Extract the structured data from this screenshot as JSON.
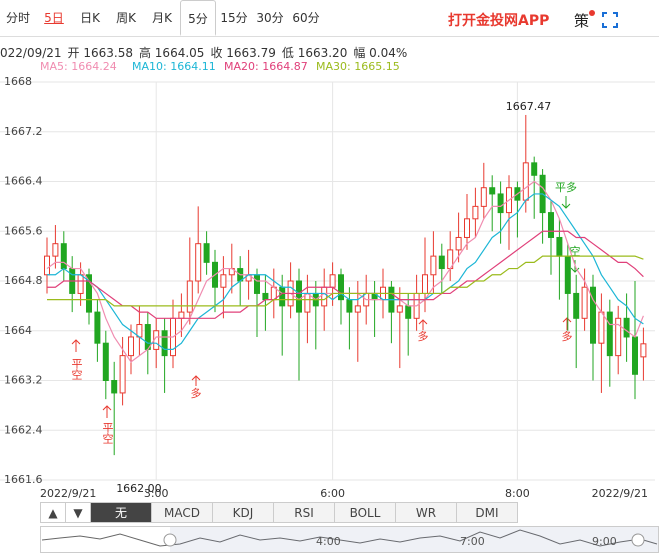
{
  "tabs": [
    "分时",
    "5日",
    "日K",
    "周K",
    "月K",
    "5分",
    "15分",
    "30分",
    "60分"
  ],
  "brand": "打开金投网APP",
  "strategy": "策",
  "info": [
    "022/09/21",
    "开 1663.58",
    "高 1664.05",
    "收 1663.79",
    "低 1663.20",
    "幅 0.04%"
  ],
  "chart_data": {
    "type": "candlestick",
    "ylim": [
      1661.6,
      1668
    ],
    "yticks": [
      1668,
      1667.2,
      1666.4,
      1665.6,
      1664.8,
      1664,
      1663.2,
      1662.4,
      1661.6
    ],
    "grid": true,
    "up_color": "#e8392f",
    "down_color": "#21a621",
    "categories": [
      "2022/9/21",
      null,
      null,
      null,
      null,
      null,
      null,
      null,
      null,
      null,
      null,
      null,
      null,
      "3:00",
      null,
      null,
      null,
      null,
      null,
      null,
      null,
      null,
      null,
      null,
      null,
      null,
      null,
      null,
      null,
      null,
      null,
      null,
      null,
      null,
      "6:00",
      null,
      null,
      null,
      null,
      null,
      null,
      null,
      null,
      null,
      null,
      null,
      null,
      null,
      null,
      null,
      null,
      null,
      null,
      null,
      null,
      null,
      "8:00",
      null,
      null,
      null,
      null,
      null,
      null,
      null,
      null,
      null,
      null,
      null,
      null,
      null,
      null,
      "2022/9/21"
    ],
    "ohlc": [
      [
        1664.9,
        1665.5,
        1664.6,
        1665.2
      ],
      [
        1665.2,
        1665.7,
        1665.0,
        1665.4
      ],
      [
        1665.4,
        1665.6,
        1664.8,
        1665.0
      ],
      [
        1665.0,
        1665.2,
        1664.3,
        1664.6
      ],
      [
        1664.6,
        1665.1,
        1664.4,
        1664.9
      ],
      [
        1664.9,
        1665.0,
        1664.1,
        1664.3
      ],
      [
        1664.3,
        1664.5,
        1663.5,
        1663.8
      ],
      [
        1663.8,
        1664.0,
        1662.9,
        1663.2
      ],
      [
        1663.2,
        1663.5,
        1662.0,
        1663.0
      ],
      [
        1663.0,
        1663.9,
        1662.8,
        1663.6
      ],
      [
        1663.6,
        1664.1,
        1663.3,
        1663.9
      ],
      [
        1663.9,
        1664.4,
        1663.6,
        1664.1
      ],
      [
        1664.1,
        1664.3,
        1663.3,
        1663.7
      ],
      [
        1663.7,
        1664.2,
        1663.4,
        1664.0
      ],
      [
        1664.0,
        1664.2,
        1663.0,
        1663.6
      ],
      [
        1663.6,
        1664.5,
        1663.4,
        1664.2
      ],
      [
        1664.2,
        1664.6,
        1663.9,
        1664.3
      ],
      [
        1664.3,
        1665.5,
        1664.1,
        1664.8
      ],
      [
        1664.8,
        1666.0,
        1664.6,
        1665.4
      ],
      [
        1665.4,
        1665.6,
        1664.9,
        1665.1
      ],
      [
        1665.1,
        1665.3,
        1664.3,
        1664.7
      ],
      [
        1664.7,
        1665.2,
        1664.2,
        1664.9
      ],
      [
        1664.9,
        1665.4,
        1664.6,
        1665.0
      ],
      [
        1665.0,
        1665.2,
        1664.4,
        1664.8
      ],
      [
        1664.8,
        1665.3,
        1664.5,
        1664.9
      ],
      [
        1664.9,
        1665.0,
        1663.9,
        1664.6
      ],
      [
        1664.6,
        1664.9,
        1664.0,
        1664.5
      ],
      [
        1664.5,
        1665.0,
        1664.2,
        1664.7
      ],
      [
        1664.7,
        1664.9,
        1663.6,
        1664.4
      ],
      [
        1664.4,
        1665.1,
        1664.2,
        1664.8
      ],
      [
        1664.8,
        1665.0,
        1663.2,
        1664.3
      ],
      [
        1664.3,
        1664.9,
        1663.8,
        1664.6
      ],
      [
        1664.6,
        1664.8,
        1663.7,
        1664.4
      ],
      [
        1664.4,
        1665.0,
        1664.0,
        1664.7
      ],
      [
        1664.7,
        1665.1,
        1664.4,
        1664.9
      ],
      [
        1664.9,
        1665.0,
        1664.1,
        1664.5
      ],
      [
        1664.5,
        1664.7,
        1663.7,
        1664.3
      ],
      [
        1664.3,
        1664.8,
        1663.5,
        1664.4
      ],
      [
        1664.4,
        1664.9,
        1664.1,
        1664.6
      ],
      [
        1664.6,
        1664.8,
        1663.9,
        1664.5
      ],
      [
        1664.5,
        1665.0,
        1664.2,
        1664.7
      ],
      [
        1664.7,
        1664.8,
        1663.8,
        1664.3
      ],
      [
        1664.3,
        1664.7,
        1663.4,
        1664.4
      ],
      [
        1664.4,
        1664.6,
        1663.6,
        1664.2
      ],
      [
        1664.2,
        1664.9,
        1664.0,
        1664.6
      ],
      [
        1664.6,
        1665.5,
        1664.3,
        1664.9
      ],
      [
        1664.9,
        1665.6,
        1664.6,
        1665.2
      ],
      [
        1665.2,
        1665.4,
        1664.6,
        1665.0
      ],
      [
        1665.0,
        1665.6,
        1664.8,
        1665.3
      ],
      [
        1665.3,
        1665.9,
        1665.1,
        1665.5
      ],
      [
        1665.5,
        1666.2,
        1665.3,
        1665.8
      ],
      [
        1665.8,
        1666.3,
        1665.5,
        1666.0
      ],
      [
        1666.0,
        1666.7,
        1665.8,
        1666.3
      ],
      [
        1666.3,
        1666.5,
        1665.6,
        1666.2
      ],
      [
        1666.2,
        1666.4,
        1665.4,
        1665.9
      ],
      [
        1665.9,
        1666.5,
        1665.3,
        1666.3
      ],
      [
        1666.3,
        1666.4,
        1665.5,
        1666.1
      ],
      [
        1666.1,
        1667.47,
        1665.9,
        1666.7
      ],
      [
        1666.7,
        1666.8,
        1665.8,
        1666.5
      ],
      [
        1666.5,
        1666.6,
        1665.4,
        1665.9
      ],
      [
        1665.9,
        1666.1,
        1664.9,
        1665.5
      ],
      [
        1665.5,
        1665.8,
        1664.5,
        1665.2
      ],
      [
        1665.2,
        1665.4,
        1664.0,
        1664.6
      ],
      [
        1664.6,
        1664.9,
        1663.4,
        1664.2
      ],
      [
        1664.2,
        1665.0,
        1664.0,
        1664.7
      ],
      [
        1664.7,
        1664.9,
        1663.2,
        1663.8
      ],
      [
        1663.8,
        1664.6,
        1663.0,
        1664.3
      ],
      [
        1664.3,
        1664.5,
        1663.1,
        1663.6
      ],
      [
        1663.6,
        1664.4,
        1663.3,
        1664.2
      ],
      [
        1664.2,
        1664.6,
        1663.5,
        1663.9
      ],
      [
        1663.9,
        1664.8,
        1662.9,
        1663.3
      ],
      [
        1663.58,
        1664.05,
        1663.2,
        1663.79
      ]
    ],
    "series": [
      {
        "name": "MA5: 1664.24",
        "color": "#f08cb0",
        "values": [
          1665.0,
          1665.1,
          1665.1,
          1665.0,
          1665.0,
          1664.8,
          1664.6,
          1664.2,
          1663.9,
          1663.7,
          1663.5,
          1663.6,
          1663.7,
          1663.9,
          1663.9,
          1663.9,
          1664.0,
          1664.2,
          1664.5,
          1664.8,
          1664.9,
          1665.0,
          1665.0,
          1664.9,
          1664.9,
          1664.8,
          1664.8,
          1664.7,
          1664.6,
          1664.6,
          1664.5,
          1664.6,
          1664.5,
          1664.6,
          1664.6,
          1664.6,
          1664.6,
          1664.6,
          1664.5,
          1664.5,
          1664.5,
          1664.5,
          1664.5,
          1664.4,
          1664.4,
          1664.5,
          1664.7,
          1664.8,
          1665.0,
          1665.2,
          1665.4,
          1665.5,
          1665.8,
          1666.0,
          1666.0,
          1666.1,
          1666.2,
          1666.3,
          1666.4,
          1666.3,
          1666.1,
          1665.8,
          1665.4,
          1665.0,
          1664.8,
          1664.5,
          1664.3,
          1664.1,
          1664.1,
          1664.0,
          1663.9,
          1664.24
        ]
      },
      {
        "name": "MA10: 1664.11",
        "color": "#1cb6d6",
        "values": [
          1664.9,
          1664.9,
          1665.0,
          1664.9,
          1664.9,
          1664.8,
          1664.7,
          1664.5,
          1664.3,
          1664.1,
          1664.0,
          1663.9,
          1663.8,
          1663.8,
          1663.7,
          1663.7,
          1663.8,
          1664.0,
          1664.2,
          1664.3,
          1664.4,
          1664.5,
          1664.7,
          1664.8,
          1664.9,
          1664.9,
          1664.9,
          1664.8,
          1664.7,
          1664.7,
          1664.6,
          1664.6,
          1664.6,
          1664.6,
          1664.5,
          1664.6,
          1664.5,
          1664.5,
          1664.6,
          1664.6,
          1664.5,
          1664.5,
          1664.5,
          1664.5,
          1664.5,
          1664.5,
          1664.6,
          1664.6,
          1664.7,
          1664.8,
          1665.0,
          1665.1,
          1665.3,
          1665.5,
          1665.6,
          1665.8,
          1665.9,
          1666.1,
          1666.2,
          1666.2,
          1666.1,
          1666.0,
          1665.8,
          1665.6,
          1665.4,
          1665.2,
          1664.9,
          1664.7,
          1664.5,
          1664.4,
          1664.2,
          1664.11
        ]
      },
      {
        "name": "MA20: 1664.87",
        "color": "#e0407a",
        "values": [
          1664.7,
          1664.7,
          1664.8,
          1664.8,
          1664.8,
          1664.8,
          1664.7,
          1664.6,
          1664.5,
          1664.4,
          1664.4,
          1664.3,
          1664.3,
          1664.2,
          1664.2,
          1664.2,
          1664.2,
          1664.2,
          1664.2,
          1664.2,
          1664.2,
          1664.3,
          1664.3,
          1664.3,
          1664.4,
          1664.4,
          1664.5,
          1664.5,
          1664.6,
          1664.6,
          1664.6,
          1664.7,
          1664.7,
          1664.7,
          1664.7,
          1664.6,
          1664.6,
          1664.6,
          1664.6,
          1664.6,
          1664.6,
          1664.6,
          1664.5,
          1664.5,
          1664.5,
          1664.5,
          1664.5,
          1664.6,
          1664.6,
          1664.7,
          1664.8,
          1664.8,
          1664.9,
          1665.0,
          1665.1,
          1665.2,
          1665.3,
          1665.4,
          1665.5,
          1665.6,
          1665.6,
          1665.6,
          1665.6,
          1665.5,
          1665.5,
          1665.4,
          1665.3,
          1665.2,
          1665.1,
          1665.1,
          1665.0,
          1664.87
        ]
      },
      {
        "name": "MA30: 1665.15",
        "color": "#9bbb1c",
        "values": [
          1664.5,
          1664.5,
          1664.5,
          1664.5,
          1664.5,
          1664.5,
          1664.5,
          1664.5,
          1664.4,
          1664.4,
          1664.4,
          1664.4,
          1664.4,
          1664.4,
          1664.4,
          1664.4,
          1664.4,
          1664.4,
          1664.4,
          1664.4,
          1664.4,
          1664.4,
          1664.4,
          1664.4,
          1664.4,
          1664.4,
          1664.4,
          1664.5,
          1664.5,
          1664.5,
          1664.5,
          1664.5,
          1664.5,
          1664.5,
          1664.6,
          1664.6,
          1664.6,
          1664.6,
          1664.6,
          1664.6,
          1664.6,
          1664.6,
          1664.6,
          1664.6,
          1664.6,
          1664.6,
          1664.6,
          1664.6,
          1664.7,
          1664.7,
          1664.7,
          1664.8,
          1664.8,
          1664.9,
          1664.9,
          1665.0,
          1665.0,
          1665.1,
          1665.1,
          1665.2,
          1665.2,
          1665.2,
          1665.2,
          1665.2,
          1665.2,
          1665.2,
          1665.2,
          1665.2,
          1665.2,
          1665.2,
          1665.2,
          1665.15
        ]
      }
    ],
    "high_label": "1667.47",
    "low_label": "1662.00",
    "annotations": [
      "平空",
      "平空",
      "多",
      "多",
      "平多",
      "空",
      "多"
    ]
  },
  "indicators": [
    "无",
    "MACD",
    "KDJ",
    "RSI",
    "BOLL",
    "WR",
    "DMI"
  ],
  "navigator_labels": [
    "4:00",
    "7:00",
    "9:00"
  ]
}
